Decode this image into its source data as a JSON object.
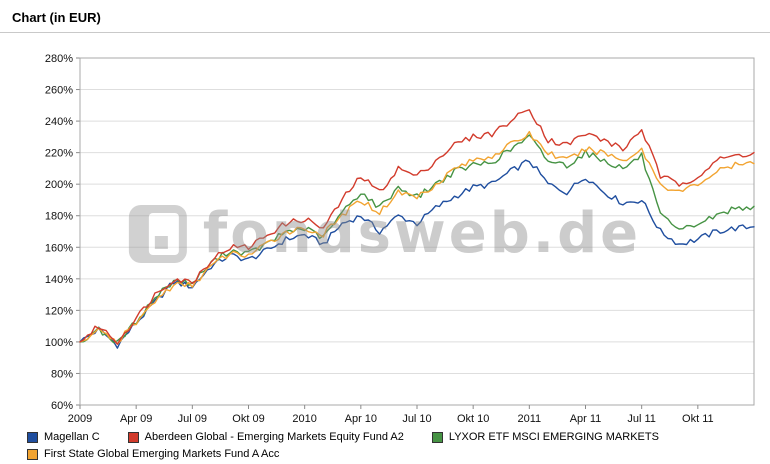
{
  "header": {
    "title": "Chart (in EUR)"
  },
  "watermark": {
    "text": "fondsweb.de"
  },
  "chart_data": {
    "type": "line",
    "title": "Chart (in EUR)",
    "ylabel": "",
    "ylim": [
      60,
      280
    ],
    "y_tick_step": 20,
    "y_tick_suffix": "%",
    "grid": true,
    "legend_position": "bottom",
    "months_total": 37,
    "x_tick_labels": [
      "2009",
      "Apr 09",
      "Jul 09",
      "Okt 09",
      "2010",
      "Apr 10",
      "Jul 10",
      "Okt 10",
      "2011",
      "Apr 11",
      "Jul 11",
      "Okt 11"
    ],
    "x_tick_month_indexes": [
      0,
      3,
      6,
      9,
      12,
      15,
      18,
      21,
      24,
      27,
      30,
      33
    ],
    "series": [
      {
        "name": "Magellan C",
        "color": "#1f4e9f",
        "values": [
          100,
          108,
          98,
          112,
          125,
          138,
          135,
          148,
          155,
          152,
          158,
          165,
          168,
          162,
          175,
          180,
          170,
          180,
          175,
          185,
          192,
          198,
          200,
          208,
          215,
          200,
          195,
          205,
          195,
          188,
          190,
          170,
          162,
          165,
          170,
          172,
          173
        ]
      },
      {
        "name": "Aberdeen Global - Emerging Markets Equity Fund A2",
        "color": "#d23b2c",
        "values": [
          100,
          110,
          100,
          115,
          130,
          140,
          138,
          152,
          160,
          160,
          168,
          175,
          178,
          172,
          190,
          205,
          195,
          210,
          205,
          215,
          225,
          230,
          232,
          240,
          248,
          228,
          225,
          232,
          228,
          222,
          235,
          205,
          200,
          205,
          215,
          218,
          220
        ]
      },
      {
        "name": "LYXOR ETF MSCI EMERGING MARKETS",
        "color": "#469344",
        "values": [
          100,
          108,
          99,
          113,
          128,
          139,
          137,
          150,
          158,
          156,
          162,
          170,
          172,
          166,
          182,
          195,
          185,
          198,
          192,
          200,
          208,
          212,
          214,
          222,
          230,
          215,
          212,
          220,
          215,
          210,
          218,
          180,
          170,
          175,
          180,
          185,
          186
        ]
      },
      {
        "name": "First State Global Emerging Markets Fund A Acc",
        "color": "#f2a431",
        "values": [
          100,
          107,
          100,
          112,
          126,
          136,
          136,
          148,
          156,
          155,
          162,
          170,
          172,
          168,
          180,
          190,
          182,
          195,
          192,
          200,
          210,
          215,
          218,
          225,
          232,
          220,
          215,
          222,
          220,
          215,
          222,
          200,
          195,
          200,
          208,
          212,
          213
        ]
      }
    ]
  }
}
